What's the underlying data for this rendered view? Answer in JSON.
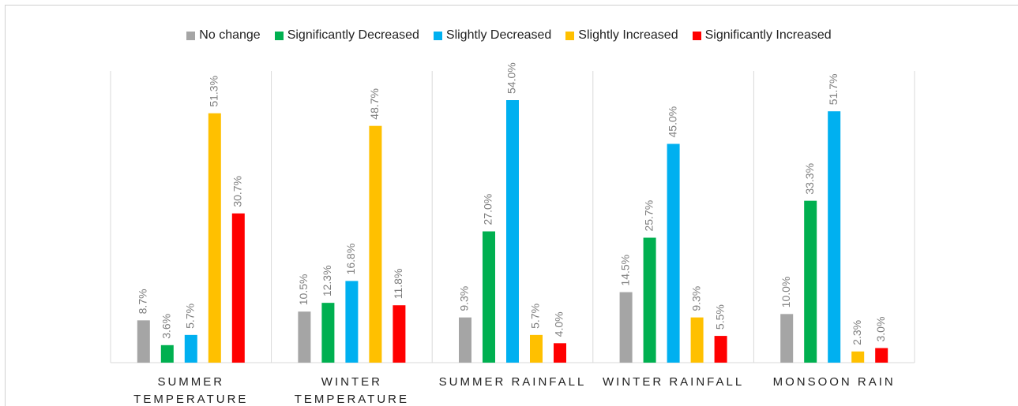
{
  "chart_data": {
    "type": "bar",
    "categories": [
      "SUMMER TEMPERATURE",
      "WINTER TEMPERATURE",
      "SUMMER RAINFALL",
      "WINTER RAINFALL",
      "MONSOON RAIN"
    ],
    "series": [
      {
        "name": "No change",
        "color": "#a5a5a5",
        "values": [
          8.7,
          10.5,
          9.3,
          14.5,
          10.0
        ],
        "value_labels": [
          "8.7%",
          "10.5%",
          "9.3%",
          "14.5%",
          "10.0%"
        ]
      },
      {
        "name": "Significantly Decreased",
        "color": "#00b050",
        "values": [
          3.6,
          12.3,
          27.0,
          25.7,
          33.3
        ],
        "value_labels": [
          "3.6%",
          "12.3%",
          "27.0%",
          "25.7%",
          "33.3%"
        ]
      },
      {
        "name": "Slightly Decreased",
        "color": "#00b0f0",
        "values": [
          5.7,
          16.8,
          54.0,
          45.0,
          51.7
        ],
        "value_labels": [
          "5.7%",
          "16.8%",
          "54.0%",
          "45.0%",
          "51.7%"
        ]
      },
      {
        "name": "Slightly Increased",
        "color": "#ffc000",
        "values": [
          51.3,
          48.7,
          5.7,
          9.3,
          2.3
        ],
        "value_labels": [
          "51.3%",
          "48.7%",
          "5.7%",
          "9.3%",
          "2.3%"
        ]
      },
      {
        "name": "Significantly Increased",
        "color": "#ff0000",
        "values": [
          30.7,
          11.8,
          4.0,
          5.5,
          3.0
        ],
        "value_labels": [
          "30.7%",
          "11.8%",
          "4.0%",
          "5.5%",
          "3.0%"
        ]
      }
    ],
    "legend": "top"
  }
}
